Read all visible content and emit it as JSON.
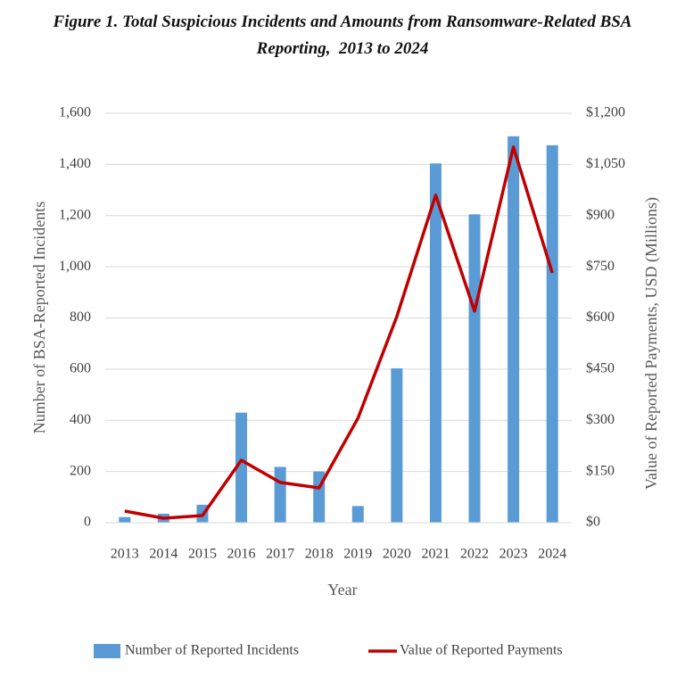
{
  "chart_data": {
    "type": "bar-line",
    "title": "Figure 1. Total Suspicious Incidents and Amounts from Ransomware-Related BSA Reporting,  2013 to 2024",
    "x_label": "Year",
    "y_label": "Number of BSA-Reported Incidents",
    "y2_label": "Value of Reported Payments, USD (Millions)",
    "categories": [
      "2013",
      "2014",
      "2015",
      "2016",
      "2017",
      "2018",
      "2019",
      "2020",
      "2021",
      "2022",
      "2023",
      "2024"
    ],
    "series": [
      {
        "name": "Number of Reported Incidents",
        "type": "bar",
        "color": "#5b9bd5",
        "values": [
          22,
          35,
          70,
          430,
          218,
          200,
          65,
          603,
          1404,
          1205,
          1510,
          1475
        ]
      },
      {
        "name": "Value of Reported Payments",
        "type": "line",
        "axis": "y2",
        "color": "#c00000",
        "values": [
          34,
          13,
          21,
          183,
          118,
          102,
          306,
          604,
          960,
          620,
          1101,
          732
        ]
      }
    ],
    "ylim": [
      0,
      1600
    ],
    "yticks": [
      0,
      200,
      400,
      600,
      800,
      {
        "value": 1000,
        "label": "1,000"
      },
      {
        "value": 1200,
        "label": "1,200"
      },
      {
        "value": 1400,
        "label": "1,400"
      },
      {
        "value": 1600,
        "label": "1,600"
      }
    ],
    "y2lim": [
      0,
      1200
    ],
    "y2ticks": [
      {
        "value": 0,
        "label": "$0"
      },
      {
        "value": 150,
        "label": "$150"
      },
      {
        "value": 300,
        "label": "$300"
      },
      {
        "value": 450,
        "label": "$450"
      },
      {
        "value": 600,
        "label": "$600"
      },
      {
        "value": 750,
        "label": "$750"
      },
      {
        "value": 900,
        "label": "$900"
      },
      {
        "value": 1050,
        "label": "$1,050"
      },
      {
        "value": 1200,
        "label": "$1,200"
      }
    ],
    "grid": true,
    "legend": "bottom"
  }
}
